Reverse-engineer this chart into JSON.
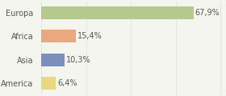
{
  "categories": [
    "Europa",
    "Africa",
    "Asia",
    "America"
  ],
  "values": [
    67.9,
    15.4,
    10.3,
    6.4
  ],
  "labels": [
    "67,9%",
    "15,4%",
    "10,3%",
    "6,4%"
  ],
  "bar_colors": [
    "#b5c98e",
    "#e8a97e",
    "#7b8fbf",
    "#e8d97e"
  ],
  "background_color": "#f5f5f0",
  "xlim": [
    0,
    82
  ],
  "label_fontsize": 7,
  "tick_fontsize": 7,
  "bar_height": 0.55,
  "grid_color": "#dddddd",
  "grid_xticks": [
    0,
    20,
    40,
    60,
    80
  ],
  "text_color": "#555555"
}
